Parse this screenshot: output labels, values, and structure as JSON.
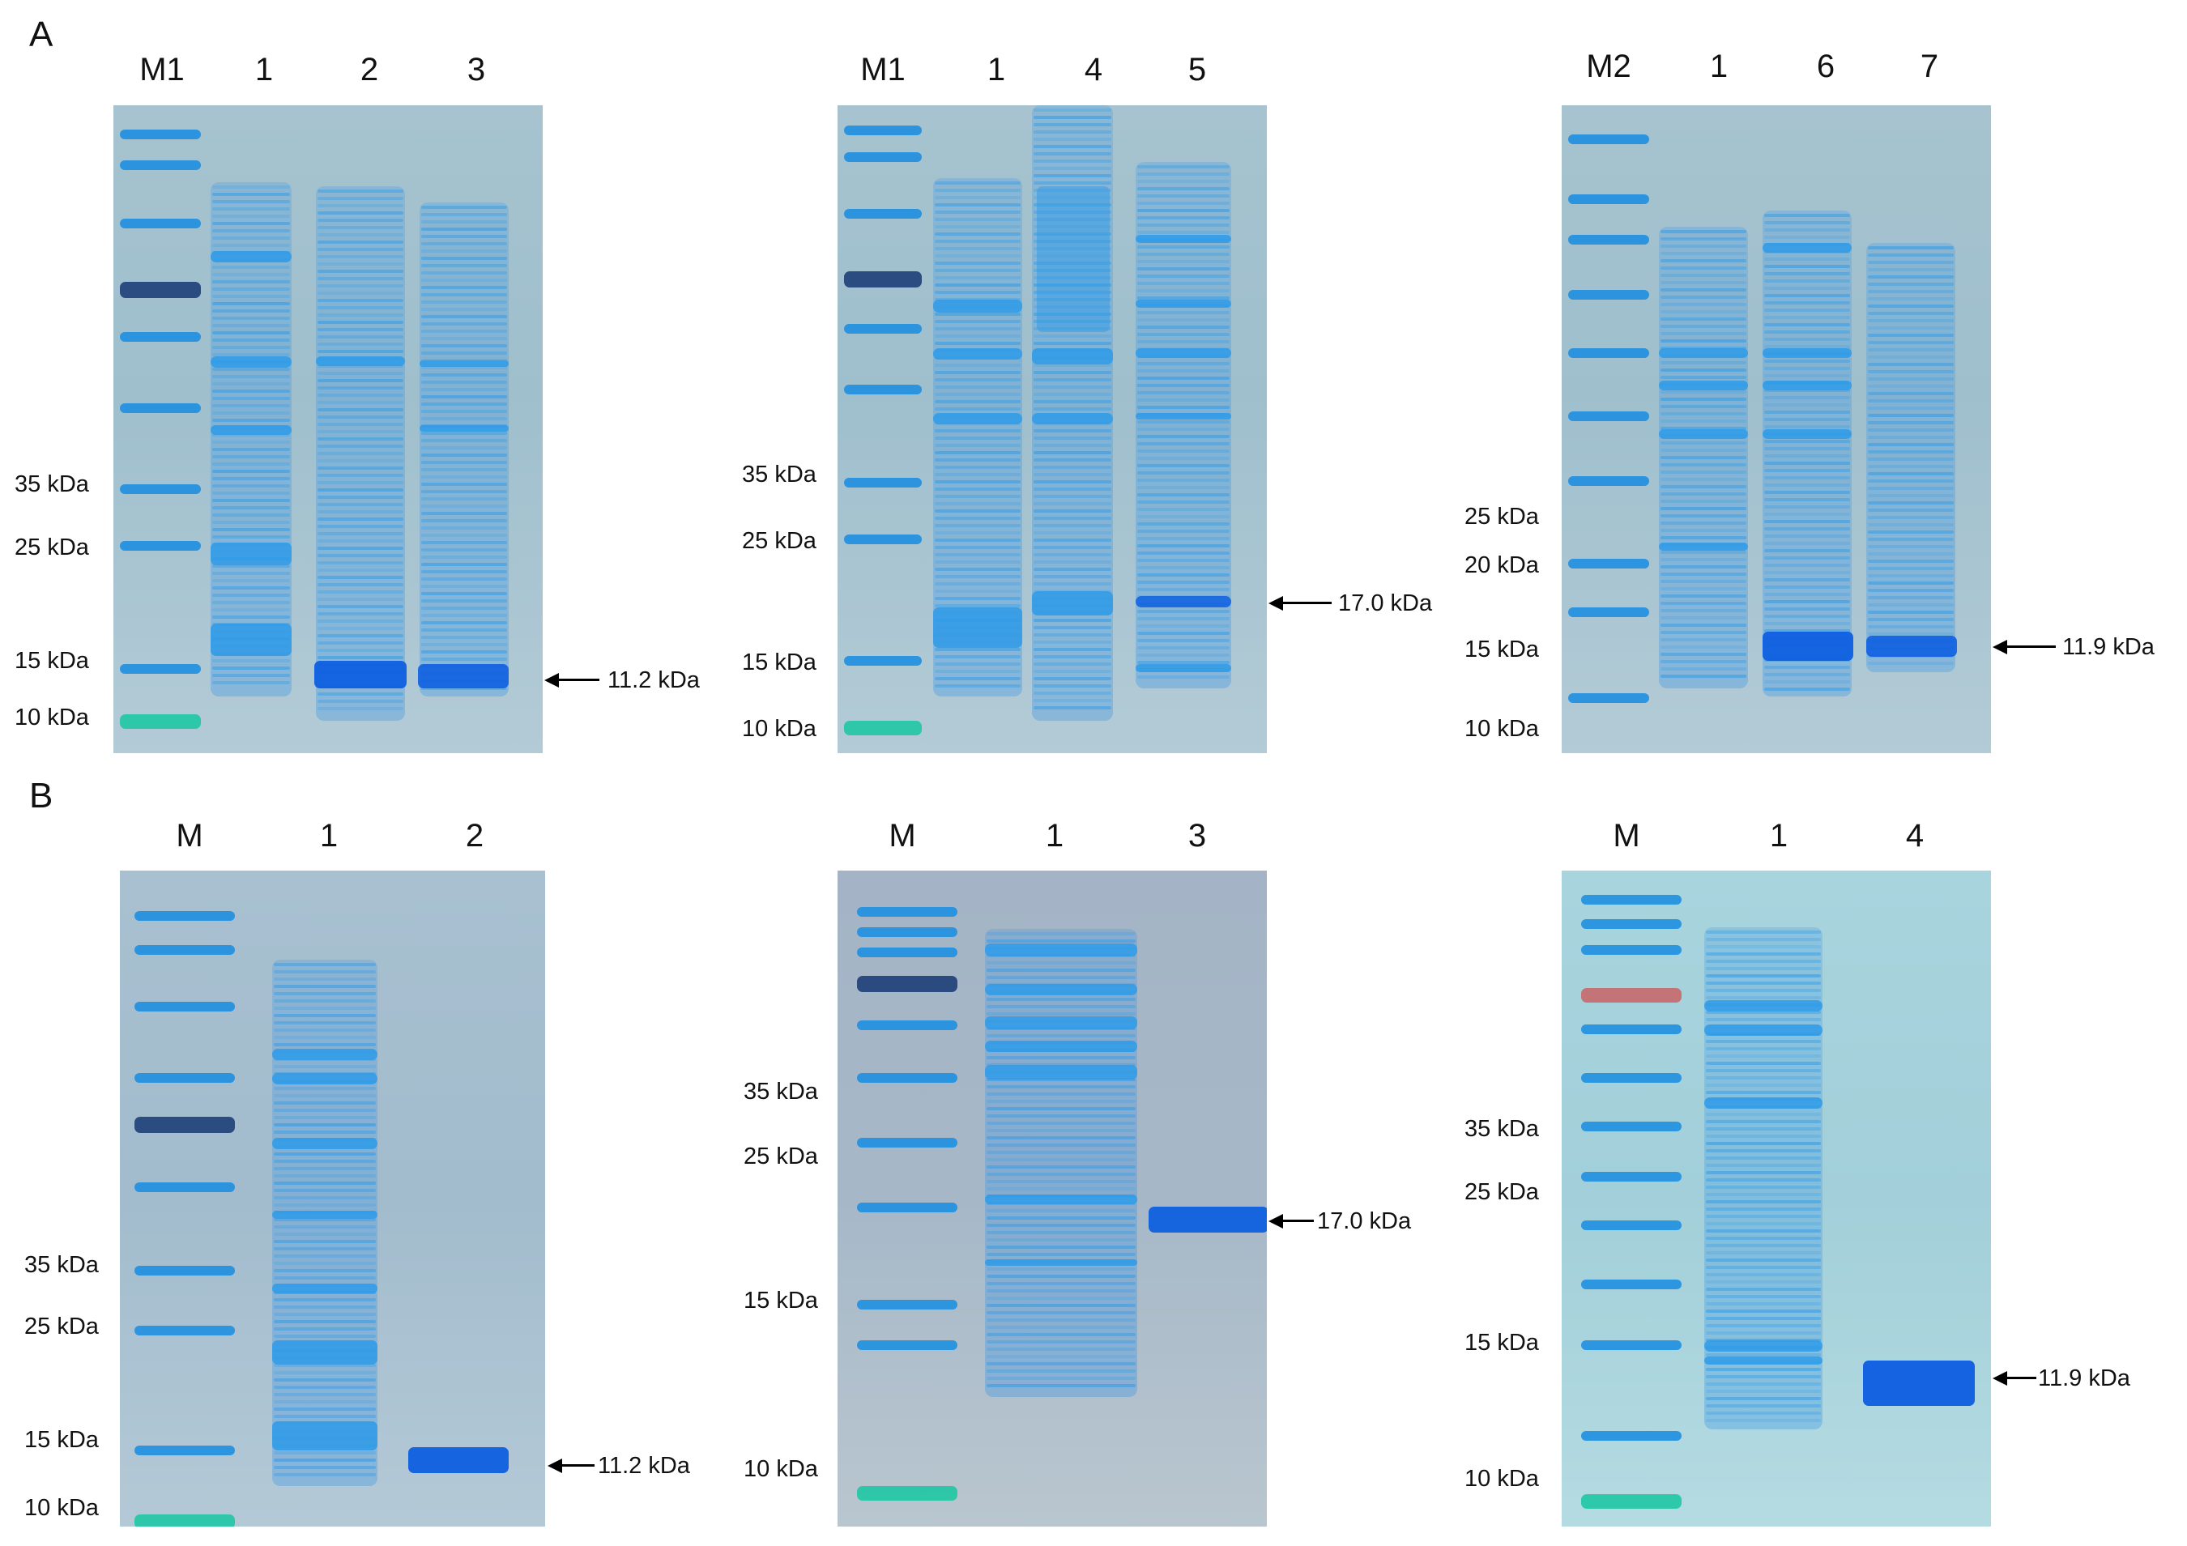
{
  "panels": [
    {
      "letter": "A",
      "gels": [
        {
          "lanes": [
            "M1",
            "1",
            "2",
            "3"
          ],
          "mw_markers": [
            "35 kDa",
            "25 kDa",
            "15 kDa",
            "10 kDa"
          ],
          "target_band": "11.2 kDa"
        },
        {
          "lanes": [
            "M1",
            "1",
            "4",
            "5"
          ],
          "mw_markers": [
            "35 kDa",
            "25 kDa",
            "15 kDa",
            "10 kDa"
          ],
          "target_band": "17.0 kDa"
        },
        {
          "lanes": [
            "M2",
            "1",
            "6",
            "7"
          ],
          "mw_markers": [
            "25 kDa",
            "20 kDa",
            "15 kDa",
            "10 kDa"
          ],
          "target_band": "11.9 kDa"
        }
      ]
    },
    {
      "letter": "B",
      "gels": [
        {
          "lanes": [
            "M",
            "1",
            "2"
          ],
          "mw_markers": [
            "35 kDa",
            "25 kDa",
            "15 kDa",
            "10 kDa"
          ],
          "target_band": "11.2 kDa"
        },
        {
          "lanes": [
            "M",
            "1",
            "3"
          ],
          "mw_markers": [
            "35 kDa",
            "25 kDa",
            "15 kDa",
            "10 kDa"
          ],
          "target_band": "17.0 kDa"
        },
        {
          "lanes": [
            "M",
            "1",
            "4"
          ],
          "mw_markers": [
            "35 kDa",
            "25 kDa",
            "15 kDa",
            "10 kDa"
          ],
          "target_band": "11.9 kDa"
        }
      ]
    }
  ],
  "colors": {
    "ladder_blue": "#1f8fe0",
    "ladder_dark": "#1e3f78",
    "ladder_green": "#1fc7a4",
    "ladder_red": "#c8686a",
    "lysate_blue": "#2f9be8",
    "target_blue": "#0f5fe0",
    "text": "#111111"
  }
}
